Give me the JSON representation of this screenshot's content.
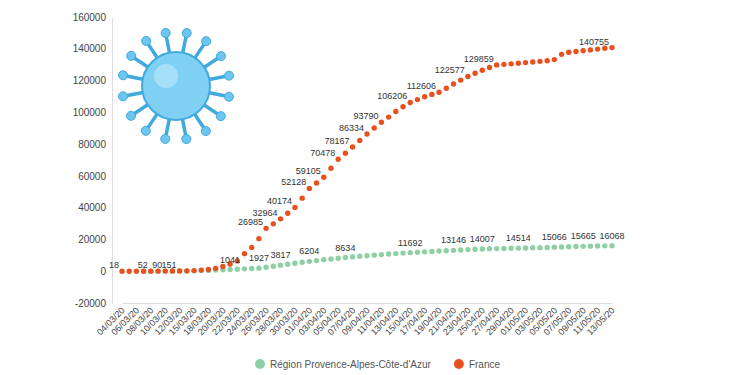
{
  "chart_data": {
    "type": "scatter",
    "marker": "circle",
    "line_style": "none",
    "grid": false,
    "legend": "bottom",
    "data_labels": true,
    "categories": [
      "04/03/20",
      null,
      "06/03/20",
      null,
      "08/03/20",
      null,
      "10/03/20",
      null,
      "12/03/20",
      null,
      "15/03/20",
      null,
      "18/03/20",
      null,
      "20/03/20",
      null,
      "22/03/20",
      null,
      "24/03/20",
      null,
      "26/03/20",
      null,
      "28/03/20",
      null,
      "30/03/20",
      null,
      "01/04/20",
      null,
      "03/04/20",
      null,
      "05/04/20",
      null,
      "07/04/20",
      null,
      "09/04/20",
      null,
      "11/04/20",
      null,
      "13/04/20",
      null,
      "15/04/20",
      null,
      "17/04/20",
      null,
      "19/04/20",
      null,
      "21/04/20",
      null,
      "23/04/20",
      null,
      "25/04/20",
      null,
      "27/04/20",
      null,
      "29/04/20",
      null,
      "01/05/20",
      null,
      "03/05/20",
      null,
      "05/05/20",
      null,
      "07/05/20",
      null,
      "09/05/20",
      null,
      "11/05/20",
      null,
      "13/05/20"
    ],
    "ylim": [
      -20000,
      160000
    ],
    "yticks": [
      -20000,
      0,
      20000,
      40000,
      60000,
      80000,
      100000,
      120000,
      140000,
      160000
    ],
    "series": [
      {
        "name": "Région Provence-Alpes-Côte-d'Azur",
        "color": "#8ed0a4",
        "values": [
          null,
          null,
          null,
          5,
          10,
          20,
          35,
          60,
          100,
          160,
          250,
          380,
          520,
          700,
          870,
          1041,
          1250,
          1480,
          1700,
          1927,
          2500,
          3150,
          3817,
          4400,
          5000,
          5600,
          6204,
          6700,
          7200,
          7700,
          8200,
          8634,
          9000,
          9400,
          9750,
          10100,
          10450,
          10800,
          11100,
          11400,
          11692,
          11950,
          12200,
          12450,
          12700,
          12930,
          13146,
          13380,
          13600,
          13800,
          14007,
          14120,
          14230,
          14330,
          14420,
          14514,
          14620,
          14730,
          14840,
          14950,
          15066,
          15220,
          15370,
          15520,
          15665,
          15770,
          15870,
          15970,
          16068
        ],
        "value_labels": [
          null,
          null,
          null,
          null,
          null,
          null,
          null,
          null,
          null,
          null,
          null,
          null,
          null,
          null,
          null,
          "1041",
          null,
          null,
          null,
          "1927",
          null,
          null,
          "3817",
          null,
          null,
          null,
          "6204",
          null,
          null,
          null,
          null,
          "8634",
          null,
          null,
          null,
          null,
          null,
          null,
          null,
          null,
          "11692",
          null,
          null,
          null,
          null,
          null,
          "13146",
          null,
          null,
          null,
          "14007",
          null,
          null,
          null,
          null,
          "14514",
          null,
          null,
          null,
          null,
          "15066",
          null,
          null,
          null,
          "15665",
          null,
          null,
          null,
          "16068"
        ]
      },
      {
        "name": "France",
        "color": "#e8501e",
        "values": [
          18,
          25,
          35,
          44,
          52,
          70,
          90,
          120,
          151,
          250,
          400,
          700,
          1100,
          1800,
          3000,
          4500,
          6500,
          11000,
          15000,
          20500,
          26985,
          29800,
          32964,
          36500,
          40174,
          46000,
          52128,
          55500,
          59105,
          64800,
          70478,
          74300,
          78167,
          82300,
          86334,
          90100,
          93790,
          97000,
          100500,
          103500,
          106206,
          108000,
          109800,
          111300,
          112606,
          115200,
          117800,
          120300,
          122577,
          124600,
          126500,
          128200,
          129859,
          130200,
          130500,
          130900,
          131300,
          131700,
          132100,
          132500,
          133200,
          136500,
          137800,
          138300,
          138800,
          139300,
          139800,
          140300,
          140755
        ],
        "value_labels": [
          "18",
          null,
          null,
          null,
          "52",
          null,
          "90",
          null,
          "151",
          null,
          null,
          null,
          null,
          null,
          null,
          null,
          null,
          null,
          null,
          null,
          "26985",
          null,
          "32964",
          null,
          "40174",
          null,
          "52128",
          null,
          "59105",
          null,
          "70478",
          null,
          "78167",
          null,
          "86334",
          null,
          "93790",
          null,
          null,
          null,
          "106206",
          null,
          null,
          null,
          "112606",
          null,
          null,
          null,
          "122577",
          null,
          null,
          null,
          "129859",
          null,
          null,
          null,
          null,
          null,
          null,
          null,
          null,
          null,
          null,
          null,
          null,
          null,
          null,
          null,
          "140755"
        ]
      }
    ]
  }
}
